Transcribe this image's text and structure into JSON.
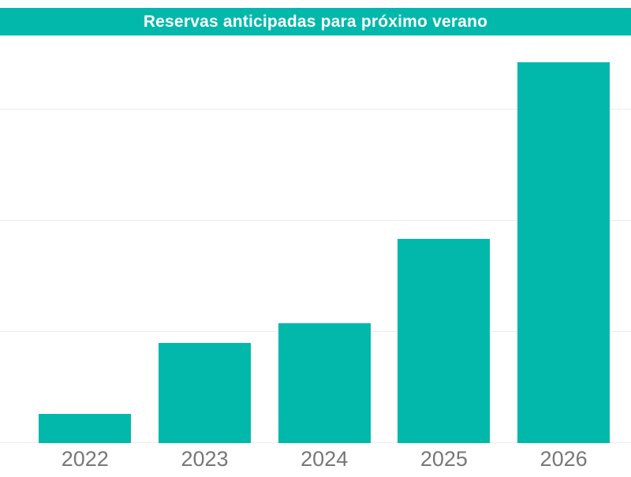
{
  "colors": {
    "accent_teal": "#01B8AA",
    "title_text": "#FFFFFF",
    "gridline": "#EBEBEB",
    "axis_label": "#777777",
    "background": "#FFFFFF"
  },
  "chart_data": {
    "type": "bar",
    "title": "Reservas anticipadas para próximo verano",
    "categories": [
      "2022",
      "2023",
      "2024",
      "2025",
      "2026"
    ],
    "values": [
      26,
      90,
      108,
      184,
      343
    ],
    "xlabel": "",
    "ylabel": "",
    "ylim": [
      0,
      367
    ],
    "gridline_interval": 100,
    "grid": "horizontal",
    "y_axis_labels_visible": false,
    "legend": "none",
    "bar_color": "#01B8AA"
  }
}
